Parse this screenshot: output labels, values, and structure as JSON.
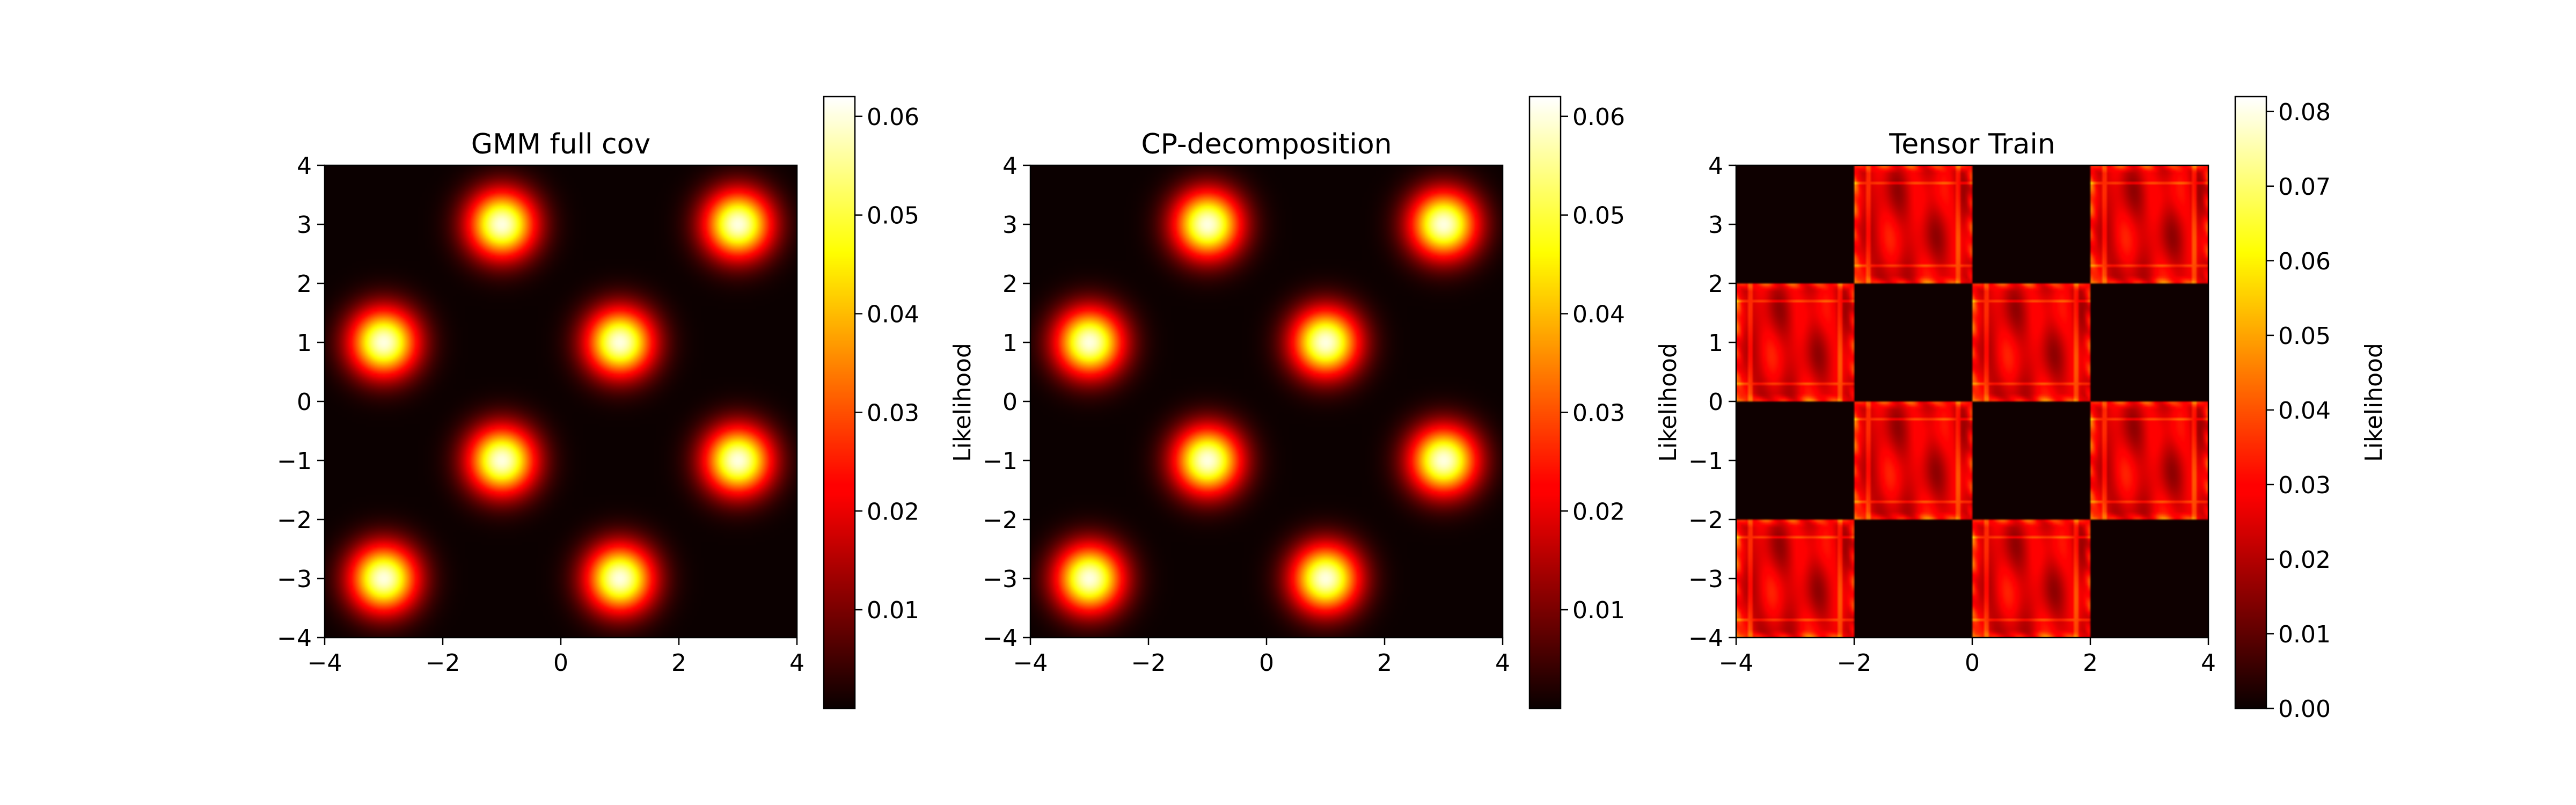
{
  "chart_data": [
    {
      "type": "heatmap",
      "title": "GMM full cov",
      "xlim": [
        -4,
        4
      ],
      "ylim": [
        -4,
        4
      ],
      "xticks": [
        -4,
        -2,
        0,
        2,
        4
      ],
      "yticks": [
        -4,
        -3,
        -2,
        -1,
        0,
        1,
        2,
        3,
        4
      ],
      "xtick_labels": [
        "−4",
        "−2",
        "0",
        "2",
        "4"
      ],
      "ytick_labels": [
        "−4",
        "−3",
        "−2",
        "−1",
        "0",
        "1",
        "2",
        "3",
        "4"
      ],
      "colormap": "hot",
      "model": "gaussian-mixture",
      "sigma": 0.4,
      "components": [
        [
          -3,
          1
        ],
        [
          1,
          1
        ],
        [
          -1,
          3
        ],
        [
          3,
          3
        ],
        [
          -1,
          -1
        ],
        [
          3,
          -1
        ],
        [
          -3,
          -3
        ],
        [
          1,
          -3
        ]
      ],
      "colorbar": {
        "label": "Likelihood",
        "range": [
          0.0,
          0.062
        ],
        "ticks": [
          0.01,
          0.02,
          0.03,
          0.04,
          0.05,
          0.06
        ],
        "tick_labels": [
          "0.01",
          "0.02",
          "0.03",
          "0.04",
          "0.05",
          "0.06"
        ]
      }
    },
    {
      "type": "heatmap",
      "title": "CP-decomposition",
      "xlim": [
        -4,
        4
      ],
      "ylim": [
        -4,
        4
      ],
      "xticks": [
        -4,
        -2,
        0,
        2,
        4
      ],
      "yticks": [
        -4,
        -3,
        -2,
        -1,
        0,
        1,
        2,
        3,
        4
      ],
      "xtick_labels": [
        "−4",
        "−2",
        "0",
        "2",
        "4"
      ],
      "ytick_labels": [
        "−4",
        "−3",
        "−2",
        "−1",
        "0",
        "1",
        "2",
        "3",
        "4"
      ],
      "colormap": "hot",
      "model": "gaussian-mixture",
      "sigma": 0.4,
      "components": [
        [
          -3,
          1
        ],
        [
          1,
          1
        ],
        [
          -1,
          3
        ],
        [
          3,
          3
        ],
        [
          -1,
          -1
        ],
        [
          3,
          -1
        ],
        [
          -3,
          -3
        ],
        [
          1,
          -3
        ]
      ],
      "colorbar": {
        "label": "Likelihood",
        "range": [
          0.0,
          0.062
        ],
        "ticks": [
          0.01,
          0.02,
          0.03,
          0.04,
          0.05,
          0.06
        ],
        "tick_labels": [
          "0.01",
          "0.02",
          "0.03",
          "0.04",
          "0.05",
          "0.06"
        ]
      }
    },
    {
      "type": "heatmap",
      "title": "Tensor Train",
      "xlim": [
        -4,
        4
      ],
      "ylim": [
        -4,
        4
      ],
      "xticks": [
        -4,
        -2,
        0,
        2,
        4
      ],
      "yticks": [
        -4,
        -3,
        -2,
        -1,
        0,
        1,
        2,
        3,
        4
      ],
      "xtick_labels": [
        "−4",
        "−2",
        "0",
        "2",
        "4"
      ],
      "ytick_labels": [
        "−4",
        "−3",
        "−2",
        "−1",
        "0",
        "1",
        "2",
        "3",
        "4"
      ],
      "colormap": "hot",
      "model": "checkerboard",
      "cell_size": 2,
      "active_cells": [
        [
          -2,
          2
        ],
        [
          2,
          2
        ],
        [
          -4,
          0
        ],
        [
          0,
          0
        ],
        [
          -2,
          -2
        ],
        [
          2,
          -2
        ],
        [
          -4,
          -4
        ],
        [
          0,
          -4
        ]
      ],
      "cell_level": 0.032,
      "colorbar": {
        "label": "Likelihood",
        "range": [
          0.0,
          0.082
        ],
        "ticks": [
          0.0,
          0.01,
          0.02,
          0.03,
          0.04,
          0.05,
          0.06,
          0.07,
          0.08
        ],
        "tick_labels": [
          "0.00",
          "0.01",
          "0.02",
          "0.03",
          "0.04",
          "0.05",
          "0.06",
          "0.07",
          "0.08"
        ]
      }
    }
  ]
}
